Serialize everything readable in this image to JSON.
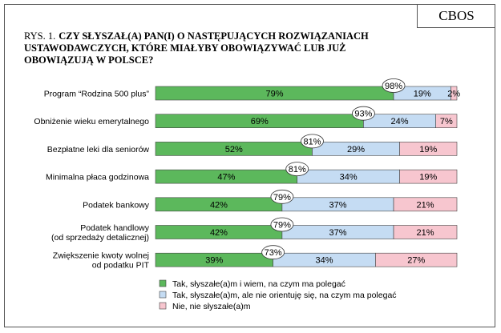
{
  "brand": "CBOS",
  "figure_prefix": "RYS. 1.",
  "chart_data": {
    "type": "bar",
    "orientation": "horizontal",
    "stacked": true,
    "title": "CZY SŁYSZAŁ(A) PAN(I) O NASTĘPUJĄCYCH ROZWIĄZANIACH USTAWODAWCZYCH, KTÓRE MIAŁYBY OBOWIĄZYWAĆ LUB JUŻ OBOWIĄZUJĄ W POLSCE?",
    "categories": [
      [
        "Program “Rodzina 500 plus”"
      ],
      [
        "Obniżenie wieku emerytalnego"
      ],
      [
        "Bezpłatne leki dla seniorów"
      ],
      [
        "Minimalna płaca godzinowa"
      ],
      [
        "Podatek bankowy"
      ],
      [
        "Podatek handlowy",
        "(od sprzedaży detalicznej)"
      ],
      [
        "Zwiększenie kwoty wolnej",
        "od podatku PIT"
      ]
    ],
    "series": [
      {
        "name": "Tak, słyszałe(a)m i wiem, na czym ma polegać",
        "color": "#5cb85c",
        "values": [
          79,
          69,
          52,
          47,
          42,
          42,
          39
        ]
      },
      {
        "name": "Tak, słyszałe(a)m, ale nie orientuję się, na czym ma  polegać",
        "color": "#c5dcf3",
        "values": [
          19,
          24,
          29,
          34,
          37,
          37,
          34
        ]
      },
      {
        "name": "Nie, nie słyszałe(a)m",
        "color": "#f7c6cf",
        "values": [
          2,
          7,
          19,
          19,
          21,
          21,
          27
        ]
      }
    ],
    "totals_heard": [
      98,
      93,
      81,
      81,
      79,
      79,
      73
    ],
    "xlim": [
      0,
      100
    ],
    "value_suffix": "%"
  }
}
